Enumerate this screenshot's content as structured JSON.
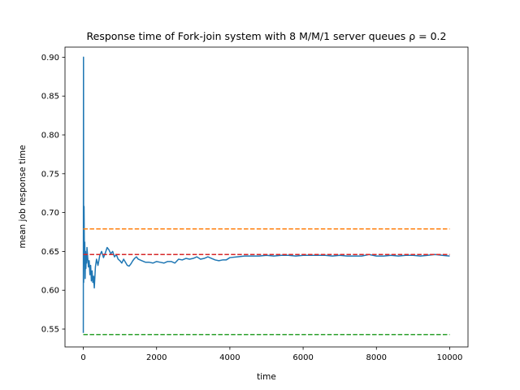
{
  "chart_data": {
    "type": "line",
    "title": "Response time of Fork-join system with 8 M/M/1 server queues ρ = 0.2",
    "xlabel": "time",
    "ylabel": "mean job response time",
    "xlim": [
      -500,
      10500
    ],
    "ylim": [
      0.527,
      0.913
    ],
    "xticks": [
      0,
      2000,
      4000,
      6000,
      8000,
      10000
    ],
    "xtick_labels": [
      "0",
      "2000",
      "4000",
      "6000",
      "8000",
      "10000"
    ],
    "yticks": [
      0.55,
      0.6,
      0.65,
      0.7,
      0.75,
      0.8,
      0.85,
      0.9
    ],
    "ytick_labels": [
      "0.55",
      "0.60",
      "0.65",
      "0.70",
      "0.75",
      "0.80",
      "0.85",
      "0.90"
    ],
    "grid": false,
    "series": [
      {
        "color": "#1f77b4",
        "style": "solid",
        "x": [
          0,
          5,
          10,
          20,
          30,
          40,
          50,
          60,
          70,
          80,
          90,
          100,
          120,
          140,
          160,
          180,
          200,
          220,
          240,
          260,
          280,
          300,
          330,
          360,
          400,
          450,
          500,
          550,
          600,
          650,
          700,
          750,
          800,
          850,
          900,
          950,
          1000,
          1050,
          1100,
          1150,
          1200,
          1250,
          1300,
          1350,
          1400,
          1450,
          1500,
          1600,
          1700,
          1800,
          1900,
          2000,
          2100,
          2200,
          2300,
          2400,
          2500,
          2600,
          2700,
          2800,
          2900,
          3000,
          3100,
          3200,
          3300,
          3400,
          3500,
          3600,
          3700,
          3800,
          3900,
          4000,
          4200,
          4400,
          4600,
          4800,
          5000,
          5200,
          5400,
          5600,
          5800,
          6000,
          6200,
          6400,
          6600,
          6800,
          7000,
          7200,
          7400,
          7600,
          7800,
          8000,
          8200,
          8400,
          8600,
          8800,
          9000,
          9200,
          9400,
          9600,
          9800,
          10000
        ],
        "values": [
          0.545,
          0.9,
          0.61,
          0.708,
          0.64,
          0.662,
          0.615,
          0.65,
          0.628,
          0.645,
          0.635,
          0.655,
          0.642,
          0.63,
          0.638,
          0.62,
          0.632,
          0.612,
          0.625,
          0.61,
          0.618,
          0.603,
          0.63,
          0.64,
          0.632,
          0.645,
          0.65,
          0.642,
          0.648,
          0.655,
          0.652,
          0.647,
          0.65,
          0.643,
          0.646,
          0.64,
          0.638,
          0.635,
          0.64,
          0.636,
          0.632,
          0.631,
          0.634,
          0.638,
          0.641,
          0.643,
          0.64,
          0.638,
          0.636,
          0.636,
          0.635,
          0.637,
          0.636,
          0.635,
          0.637,
          0.637,
          0.635,
          0.64,
          0.639,
          0.641,
          0.64,
          0.641,
          0.643,
          0.64,
          0.641,
          0.643,
          0.641,
          0.639,
          0.638,
          0.639,
          0.639,
          0.642,
          0.643,
          0.644,
          0.644,
          0.644,
          0.645,
          0.644,
          0.645,
          0.645,
          0.644,
          0.645,
          0.645,
          0.645,
          0.645,
          0.644,
          0.645,
          0.644,
          0.644,
          0.644,
          0.646,
          0.644,
          0.644,
          0.645,
          0.644,
          0.645,
          0.645,
          0.644,
          0.645,
          0.646,
          0.645,
          0.644
        ]
      },
      {
        "color": "#ff7f0e",
        "style": "dashed",
        "x": [
          0,
          10000
        ],
        "values": [
          0.679,
          0.679
        ]
      },
      {
        "color": "#d62728",
        "style": "dashed",
        "x": [
          0,
          10000
        ],
        "values": [
          0.646,
          0.646
        ]
      },
      {
        "color": "#2ca02c",
        "style": "dashed",
        "x": [
          0,
          10000
        ],
        "values": [
          0.543,
          0.543
        ]
      }
    ]
  }
}
